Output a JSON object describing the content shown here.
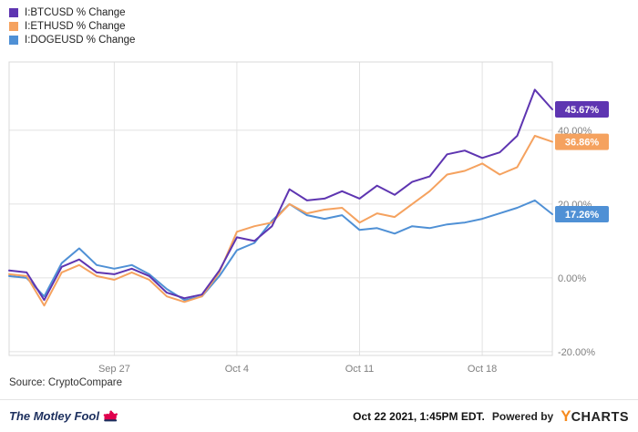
{
  "legend": {
    "items": [
      {
        "label": "I:BTCUSD % Change",
        "color": "#5e35b1"
      },
      {
        "label": "I:ETHUSD % Change",
        "color": "#f5a25f"
      },
      {
        "label": "I:DOGEUSD % Change",
        "color": "#4f90d5"
      }
    ]
  },
  "chart_data": {
    "type": "line",
    "title": "",
    "xlabel": "",
    "ylabel": "% Change",
    "x": [
      "Sep 21",
      "Sep 22",
      "Sep 23",
      "Sep 24",
      "Sep 25",
      "Sep 26",
      "Sep 27",
      "Sep 28",
      "Sep 29",
      "Sep 30",
      "Oct 1",
      "Oct 2",
      "Oct 3",
      "Oct 4",
      "Oct 5",
      "Oct 6",
      "Oct 7",
      "Oct 8",
      "Oct 9",
      "Oct 10",
      "Oct 11",
      "Oct 12",
      "Oct 13",
      "Oct 14",
      "Oct 15",
      "Oct 16",
      "Oct 17",
      "Oct 18",
      "Oct 19",
      "Oct 20",
      "Oct 21",
      "Oct 22"
    ],
    "series": [
      {
        "name": "I:BTCUSD % Change",
        "color": "#5e35b1",
        "end_label": "45.67%",
        "values": [
          2,
          1.5,
          -6,
          3,
          5,
          1.5,
          1,
          2.5,
          0.5,
          -4,
          -5.5,
          -4.5,
          2,
          11,
          10,
          14,
          24,
          21,
          21.5,
          23.5,
          21.5,
          25,
          22.5,
          26,
          27.5,
          33.5,
          34.5,
          32.5,
          34,
          38.5,
          51,
          45.67
        ]
      },
      {
        "name": "I:ETHUSD % Change",
        "color": "#f5a25f",
        "end_label": "36.86%",
        "values": [
          1,
          0.5,
          -7.5,
          1.5,
          3.5,
          0.5,
          -0.5,
          1.5,
          -0.5,
          -5,
          -6.5,
          -5,
          1.5,
          12.5,
          14,
          15,
          20,
          17.5,
          18.5,
          19,
          15,
          17.5,
          16.5,
          20,
          23.5,
          28,
          29,
          31,
          28,
          30,
          38.5,
          36.86
        ]
      },
      {
        "name": "I:DOGEUSD % Change",
        "color": "#4f90d5",
        "end_label": "17.26%",
        "values": [
          0.5,
          0,
          -5,
          4,
          8,
          3.5,
          2.5,
          3.5,
          1,
          -3,
          -6,
          -5,
          0.5,
          7.5,
          9.5,
          15.5,
          20,
          17,
          16,
          17,
          13,
          13.5,
          12,
          14,
          13.5,
          14.5,
          15,
          16,
          17.5,
          19,
          21,
          17.26
        ]
      }
    ],
    "ylim": [
      -21,
      58.5
    ],
    "yticks": [
      40,
      20,
      0,
      -20
    ],
    "ytick_labels": [
      "40.00%",
      "20.00%",
      "0.00%",
      "-20.00%"
    ],
    "xtick_labels": [
      "Sep 27",
      "Oct 4",
      "Oct 11",
      "Oct 18"
    ],
    "xtick_indices": [
      6,
      13,
      20,
      27
    ],
    "grid": true,
    "legend_position": "top-left",
    "grid_color": "#e2e2e2",
    "border_color": "#d8d8d8",
    "tick_label_color": "#808080"
  },
  "source": "Source: CryptoCompare",
  "footer": {
    "brand": "The Motley Fool",
    "timestamp": "Oct 22 2021, 1:45PM EDT.",
    "powered_by": "Powered by",
    "ycharts_y": "Y",
    "ycharts_rest": "CHARTS"
  }
}
